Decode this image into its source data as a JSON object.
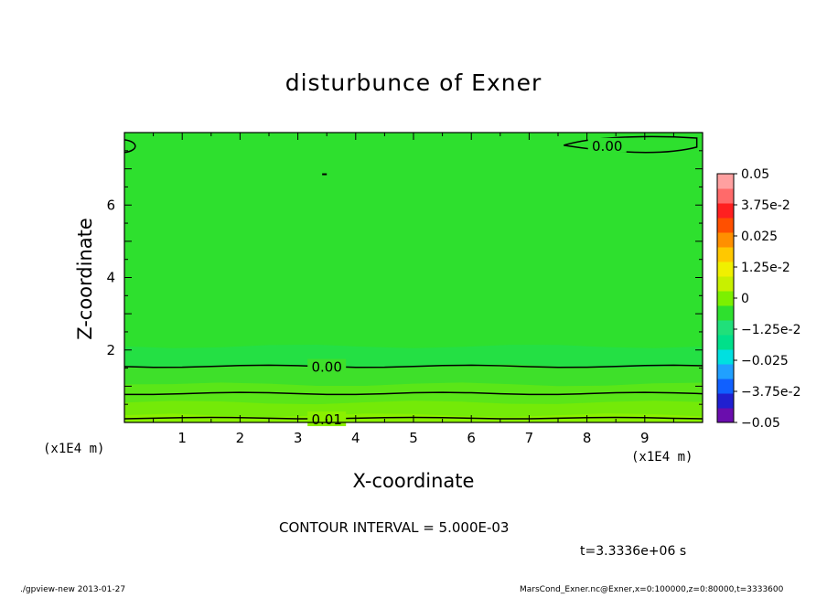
{
  "chart_data": {
    "type": "heatmap",
    "title": "disturbunce of Exner",
    "xlabel": "X-coordinate",
    "ylabel": "Z-coordinate",
    "x_unit_label": "(x1E4 m)",
    "xlim": [
      0,
      10
    ],
    "ylim": [
      0,
      8
    ],
    "xticks": [
      "1",
      "2",
      "3",
      "4",
      "5",
      "6",
      "7",
      "8",
      "9"
    ],
    "yticks": [
      "2",
      "4",
      "6"
    ],
    "contour_labels": [
      "0.00",
      "0.00",
      "0.01"
    ],
    "colorbar": {
      "ticks": [
        "0.05",
        "3.75e-2",
        "0.025",
        "1.25e-2",
        "0",
        "−1.25e-2",
        "−0.025",
        "−3.75e-2",
        "−0.05"
      ],
      "range": [
        -0.05,
        0.05
      ],
      "colors": [
        "#6a0dad",
        "#2020d0",
        "#1060ff",
        "#20a0ff",
        "#00e0e0",
        "#00e08a",
        "#20e07a",
        "#2ee02e",
        "#7cf000",
        "#c8f000",
        "#f0f000",
        "#ffc800",
        "#ff9000",
        "#ff5000",
        "#ff2020",
        "#ff6a6a",
        "#ffa0a0"
      ]
    },
    "field": {
      "background_color": "#2ee02e",
      "bands": [
        {
          "z_top": 2.1,
          "color": "#24e044"
        },
        {
          "z_top": 1.55,
          "color": "#3ee02a"
        },
        {
          "z_top": 1.05,
          "color": "#5ae618"
        },
        {
          "z_top": 0.55,
          "color": "#74ea08"
        },
        {
          "z_top": 0.2,
          "color": "#8af000"
        }
      ]
    }
  },
  "annotations": {
    "contour_interval": "CONTOUR INTERVAL = 5.000E-03",
    "time": "t=3.3336e+06 s",
    "footer_left": "./gpview-new   2013-01-27",
    "footer_right": "MarsCond_Exner.nc@Exner,x=0:100000,z=0:80000,t=3333600"
  }
}
